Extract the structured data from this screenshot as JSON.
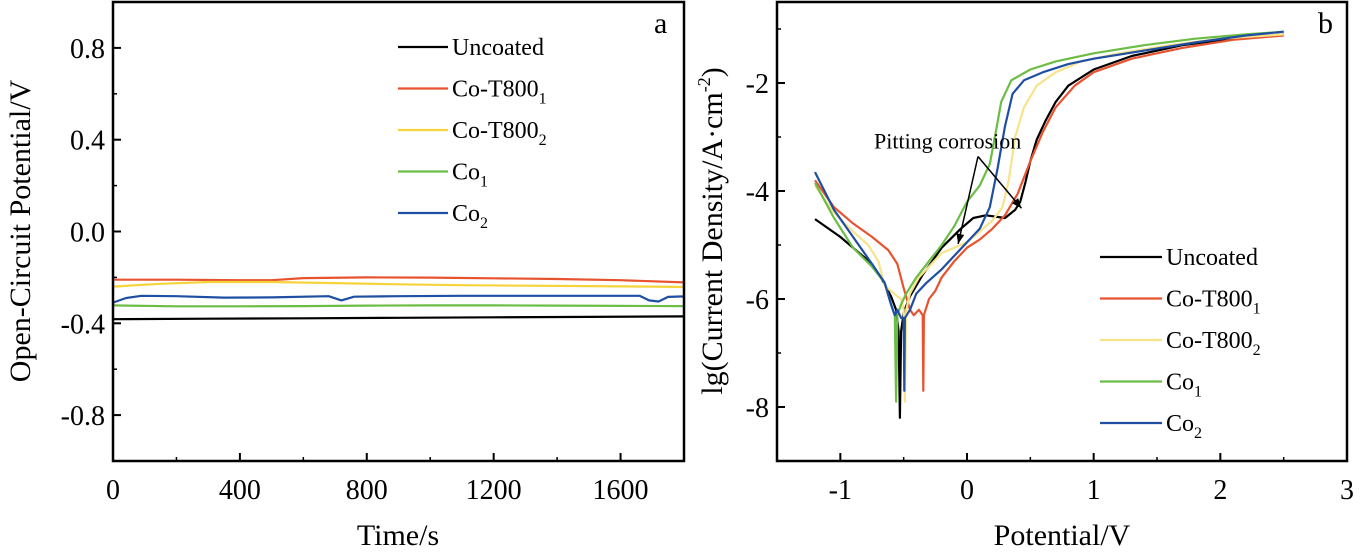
{
  "chart_data": [
    {
      "type": "line",
      "panel_label": "a",
      "title": "",
      "xlabel": "Time/s",
      "ylabel": "Open-Circuit Potential/V",
      "xlim": [
        0,
        1800
      ],
      "ylim": [
        -1.0,
        1.0
      ],
      "xticks": [
        0,
        400,
        800,
        1200,
        1600
      ],
      "xtick_labels": [
        "0",
        "400",
        "800",
        "1200",
        "1600"
      ],
      "yticks": [
        0.8,
        0.4,
        0.0,
        -0.4,
        -0.8
      ],
      "ytick_labels": [
        "0.8",
        "0.4",
        "0.0",
        "-0.4",
        "-0.8"
      ],
      "grid": false,
      "legend_position": "top-right",
      "series": [
        {
          "name": "Uncoated",
          "label_main": "Uncoated",
          "label_sub": "",
          "color": "#000000",
          "x": [
            0,
            300,
            600,
            900,
            1200,
            1500,
            1800
          ],
          "y": [
            -0.382,
            -0.38,
            -0.378,
            -0.376,
            -0.374,
            -0.372,
            -0.37
          ]
        },
        {
          "name": "Co-T800_1",
          "label_main": "Co-T800",
          "label_sub": "1",
          "color": "#e8532f",
          "x": [
            0,
            200,
            400,
            500,
            600,
            800,
            1000,
            1200,
            1400,
            1600,
            1800
          ],
          "y": [
            -0.21,
            -0.21,
            -0.212,
            -0.212,
            -0.203,
            -0.2,
            -0.201,
            -0.204,
            -0.207,
            -0.212,
            -0.222
          ]
        },
        {
          "name": "Co-T800_2",
          "label_main": "Co-T800",
          "label_sub": "2",
          "color": "#f5d33c",
          "x": [
            0,
            150,
            300,
            500,
            700,
            900,
            1100,
            1300,
            1500,
            1700,
            1800
          ],
          "y": [
            -0.24,
            -0.228,
            -0.22,
            -0.22,
            -0.225,
            -0.23,
            -0.234,
            -0.236,
            -0.238,
            -0.24,
            -0.242
          ]
        },
        {
          "name": "Co_1",
          "label_main": "Co",
          "label_sub": "1",
          "color": "#6cbd45",
          "x": [
            0,
            200,
            400,
            600,
            800,
            1000,
            1200,
            1400,
            1600,
            1800
          ],
          "y": [
            -0.322,
            -0.326,
            -0.326,
            -0.325,
            -0.323,
            -0.322,
            -0.322,
            -0.323,
            -0.324,
            -0.325
          ]
        },
        {
          "name": "Co_2",
          "label_main": "Co",
          "label_sub": "2",
          "color": "#1f4fa3",
          "x": [
            0,
            40,
            90,
            200,
            350,
            500,
            680,
            720,
            760,
            900,
            1100,
            1300,
            1500,
            1660,
            1690,
            1720,
            1750,
            1800
          ],
          "y": [
            -0.31,
            -0.29,
            -0.28,
            -0.282,
            -0.288,
            -0.287,
            -0.282,
            -0.3,
            -0.284,
            -0.282,
            -0.28,
            -0.28,
            -0.28,
            -0.28,
            -0.3,
            -0.305,
            -0.285,
            -0.283
          ]
        }
      ]
    },
    {
      "type": "line",
      "panel_label": "b",
      "title": "",
      "xlabel": "Potential/V",
      "ylabel_main": "lg(Current Density/A·cm",
      "ylabel_sup": "-2",
      "ylabel_close": ")",
      "xlim": [
        -1.5,
        3.0
      ],
      "ylim": [
        -9.0,
        -0.5
      ],
      "xticks": [
        -1,
        0,
        1,
        2,
        3
      ],
      "xtick_labels": [
        "-1",
        "0",
        "1",
        "2",
        "3"
      ],
      "yticks": [
        -2,
        -4,
        -6,
        -8
      ],
      "ytick_labels": [
        "-2",
        "-4",
        "-6",
        "-8"
      ],
      "grid": false,
      "legend_position": "bottom-right",
      "annotation": {
        "text": "Pitting corrosion",
        "from": [
          0.15,
          -3.25
        ],
        "arrows_to": [
          [
            -0.07,
            -4.98
          ],
          [
            0.43,
            -4.32
          ]
        ]
      },
      "series": [
        {
          "name": "Uncoated",
          "label_main": "Uncoated",
          "label_sub": "",
          "color": "#000000",
          "x": [
            -1.2,
            -1.0,
            -0.8,
            -0.68,
            -0.6,
            -0.56,
            -0.54,
            -0.53,
            -0.52,
            -0.5,
            -0.45,
            -0.35,
            -0.2,
            -0.05,
            0.05,
            0.15,
            0.3,
            0.38,
            0.42,
            0.46,
            0.5,
            0.55,
            0.62,
            0.7,
            0.8,
            1.0,
            1.3,
            1.7,
            2.1,
            2.5
          ],
          "y": [
            -4.52,
            -4.85,
            -5.25,
            -5.6,
            -5.95,
            -6.2,
            -6.6,
            -8.2,
            -6.6,
            -6.25,
            -5.95,
            -5.55,
            -5.05,
            -4.7,
            -4.5,
            -4.45,
            -4.5,
            -4.35,
            -4.2,
            -3.85,
            -3.45,
            -3.05,
            -2.7,
            -2.35,
            -2.05,
            -1.75,
            -1.5,
            -1.3,
            -1.18,
            -1.1
          ]
        },
        {
          "name": "Co-T800_1",
          "label_main": "Co-T800",
          "label_sub": "1",
          "color": "#e8532f",
          "x": [
            -1.2,
            -1.05,
            -0.9,
            -0.75,
            -0.62,
            -0.55,
            -0.5,
            -0.45,
            -0.42,
            -0.38,
            -0.35,
            -0.345,
            -0.34,
            -0.3,
            -0.25,
            -0.2,
            -0.1,
            0.0,
            0.1,
            0.2,
            0.3,
            0.4,
            0.5,
            0.6,
            0.7,
            0.85,
            1.0,
            1.3,
            1.7,
            2.1,
            2.5
          ],
          "y": [
            -3.8,
            -4.3,
            -4.6,
            -4.85,
            -5.1,
            -5.35,
            -5.8,
            -6.2,
            -6.3,
            -6.2,
            -6.3,
            -7.7,
            -6.3,
            -6.0,
            -5.85,
            -5.6,
            -5.3,
            -5.05,
            -4.9,
            -4.7,
            -4.45,
            -4.05,
            -3.45,
            -2.9,
            -2.45,
            -2.05,
            -1.8,
            -1.55,
            -1.35,
            -1.2,
            -1.12
          ]
        },
        {
          "name": "Co-T800_2",
          "label_main": "Co-T800",
          "label_sub": "2",
          "color": "#f7e38a",
          "x": [
            -1.2,
            -1.05,
            -0.9,
            -0.78,
            -0.7,
            -0.65,
            -0.6,
            -0.55,
            -0.52,
            -0.5,
            -0.49,
            -0.48,
            -0.45,
            -0.38,
            -0.3,
            -0.2,
            -0.1,
            0.0,
            0.1,
            0.2,
            0.28,
            0.33,
            0.38,
            0.45,
            0.55,
            0.7,
            0.9,
            1.2,
            1.6,
            2.0,
            2.5
          ],
          "y": [
            -3.9,
            -4.4,
            -4.75,
            -5.0,
            -5.3,
            -5.75,
            -5.85,
            -5.95,
            -6.0,
            -6.2,
            -7.9,
            -6.2,
            -5.9,
            -5.6,
            -5.4,
            -5.15,
            -5.05,
            -4.95,
            -4.75,
            -4.55,
            -4.3,
            -3.8,
            -3.0,
            -2.45,
            -2.05,
            -1.8,
            -1.6,
            -1.45,
            -1.3,
            -1.18,
            -1.1
          ]
        },
        {
          "name": "Co_1",
          "label_main": "Co",
          "label_sub": "1",
          "color": "#6cbd45",
          "x": [
            -1.2,
            -1.05,
            -0.9,
            -0.75,
            -0.65,
            -0.6,
            -0.57,
            -0.56,
            -0.55,
            -0.52,
            -0.48,
            -0.4,
            -0.3,
            -0.2,
            -0.1,
            0.0,
            0.1,
            0.18,
            0.22,
            0.27,
            0.35,
            0.5,
            0.7,
            1.0,
            1.4,
            1.8,
            2.2,
            2.5
          ],
          "y": [
            -3.85,
            -4.5,
            -5.05,
            -5.4,
            -5.7,
            -6.1,
            -6.3,
            -7.9,
            -6.3,
            -6.1,
            -5.9,
            -5.6,
            -5.3,
            -5.0,
            -4.65,
            -4.2,
            -3.9,
            -3.5,
            -3.0,
            -2.35,
            -1.95,
            -1.75,
            -1.6,
            -1.45,
            -1.3,
            -1.18,
            -1.1,
            -1.05
          ]
        },
        {
          "name": "Co_2",
          "label_main": "Co",
          "label_sub": "2",
          "color": "#1f4fa3",
          "x": [
            -1.2,
            -1.05,
            -0.9,
            -0.75,
            -0.65,
            -0.6,
            -0.57,
            -0.55,
            -0.52,
            -0.5,
            -0.495,
            -0.49,
            -0.45,
            -0.4,
            -0.32,
            -0.2,
            -0.1,
            0.0,
            0.1,
            0.18,
            0.24,
            0.3,
            0.36,
            0.45,
            0.6,
            0.8,
            1.0,
            1.4,
            1.8,
            2.2,
            2.5
          ],
          "y": [
            -3.65,
            -4.35,
            -4.85,
            -5.35,
            -5.7,
            -6.1,
            -6.3,
            -6.2,
            -6.35,
            -6.35,
            -7.7,
            -6.35,
            -6.2,
            -5.9,
            -5.7,
            -5.45,
            -5.2,
            -4.95,
            -4.7,
            -4.3,
            -3.6,
            -2.8,
            -2.2,
            -1.95,
            -1.8,
            -1.65,
            -1.55,
            -1.4,
            -1.25,
            -1.12,
            -1.05
          ]
        }
      ]
    }
  ]
}
